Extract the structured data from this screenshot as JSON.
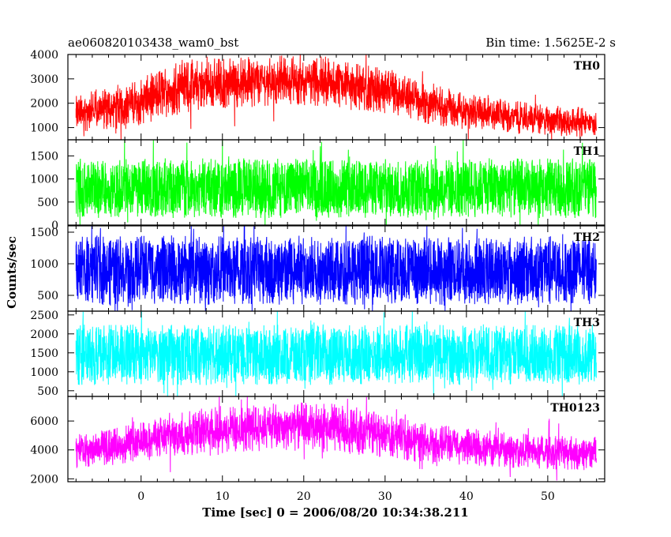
{
  "chart_data": {
    "type": "line",
    "title": "ae060820103438_wam0_bst",
    "bin_time_label": "Bin time: 1.5625E-2 s",
    "xlabel": "Time [sec] 0 = 2006/08/20 10:34:38.211",
    "ylabel": "Counts/sec",
    "xlim": [
      -9,
      57
    ],
    "x_ticks": [
      0,
      10,
      20,
      30,
      40,
      50
    ],
    "data_x_range": [
      -8,
      56
    ],
    "panels": [
      {
        "name": "TH0",
        "color": "#ff0000",
        "ylim": [
          500,
          4000
        ],
        "y_ticks": [
          1000,
          2000,
          3000,
          4000
        ],
        "envelope_x": [
          -8,
          -4,
          0,
          4,
          8,
          12,
          16,
          20,
          24,
          28,
          32,
          36,
          40,
          44,
          48,
          52,
          56
        ],
        "envelope_low": [
          800,
          900,
          1100,
          1500,
          1700,
          1800,
          1900,
          1900,
          1800,
          1600,
          1300,
          1100,
          900,
          800,
          700,
          650,
          600
        ],
        "envelope_high": [
          2300,
          2700,
          3000,
          3800,
          3900,
          3900,
          3950,
          4000,
          3900,
          3600,
          3200,
          2800,
          2400,
          2200,
          2000,
          1900,
          1800
        ],
        "spread": 0.5
      },
      {
        "name": "TH1",
        "color": "#00ff00",
        "ylim": [
          0,
          1850
        ],
        "y_ticks": [
          0,
          500,
          1000,
          1500
        ],
        "envelope_x": [
          -8,
          56
        ],
        "envelope_low": [
          150,
          150
        ],
        "envelope_high": [
          1450,
          1450
        ],
        "spread": 0.85
      },
      {
        "name": "TH2",
        "color": "#0000ff",
        "ylim": [
          250,
          1600
        ],
        "y_ticks": [
          500,
          1000,
          1500
        ],
        "envelope_x": [
          -8,
          56
        ],
        "envelope_low": [
          350,
          350
        ],
        "envelope_high": [
          1450,
          1450
        ],
        "spread": 0.85
      },
      {
        "name": "TH3",
        "color": "#00ffff",
        "ylim": [
          350,
          2600
        ],
        "y_ticks": [
          500,
          1000,
          1500,
          2000,
          2500
        ],
        "envelope_x": [
          -8,
          56
        ],
        "envelope_low": [
          650,
          650
        ],
        "envelope_high": [
          2250,
          2250
        ],
        "spread": 0.85
      },
      {
        "name": "TH0123",
        "color": "#ff00ff",
        "ylim": [
          1800,
          7700
        ],
        "y_ticks": [
          2000,
          4000,
          6000
        ],
        "envelope_x": [
          -8,
          -4,
          0,
          4,
          8,
          12,
          16,
          20,
          24,
          28,
          32,
          36,
          40,
          44,
          48,
          52,
          56
        ],
        "envelope_low": [
          2700,
          2900,
          3200,
          3500,
          3700,
          3800,
          3900,
          3900,
          3800,
          3600,
          3300,
          3100,
          2900,
          2800,
          2700,
          2600,
          2600
        ],
        "envelope_high": [
          5200,
          5500,
          6000,
          6700,
          7000,
          7100,
          7200,
          7300,
          7200,
          6800,
          6200,
          5800,
          5500,
          5300,
          5100,
          5000,
          5000
        ],
        "spread": 0.55
      }
    ]
  }
}
